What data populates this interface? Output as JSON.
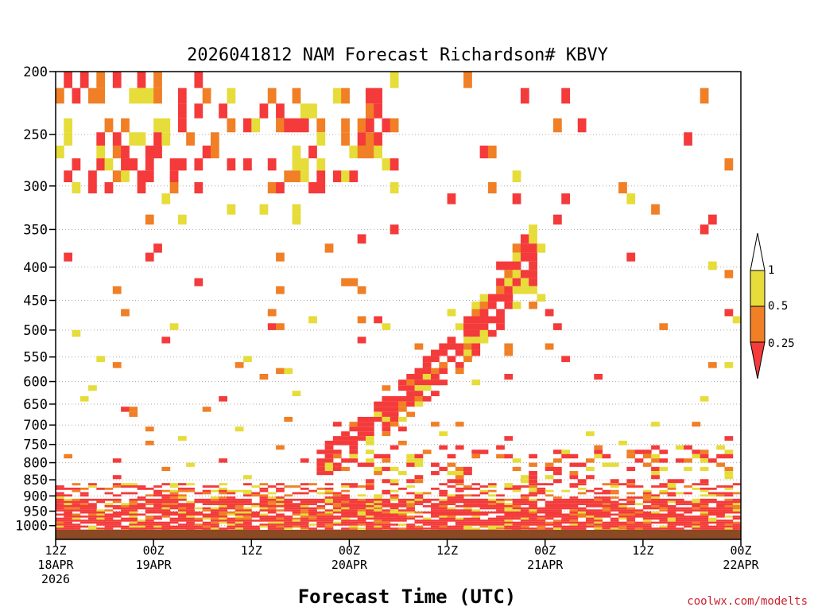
{
  "chart_data": {
    "type": "heatmap",
    "title": "2026041812 NAM Forecast Richardson# KBVY",
    "xlabel": "Forecast Time (UTC)",
    "ylabel": "",
    "credit": "coolwx.com/modelts",
    "y_ticks": [
      "200",
      "250",
      "300",
      "350",
      "400",
      "450",
      "500",
      "550",
      "600",
      "650",
      "700",
      "750",
      "800",
      "850",
      "900",
      "950",
      "1000"
    ],
    "y_tick_values": [
      200,
      250,
      300,
      350,
      400,
      450,
      500,
      550,
      600,
      650,
      700,
      750,
      800,
      850,
      900,
      950,
      1000
    ],
    "ylim": [
      200,
      1050
    ],
    "x_tick_hours": [
      0,
      12,
      24,
      36,
      48,
      60,
      72,
      84
    ],
    "x_ticks": [
      {
        "line1": "12Z",
        "line2": "18APR",
        "line3": "2026"
      },
      {
        "line1": "00Z",
        "line2": "19APR",
        "line3": ""
      },
      {
        "line1": "12Z",
        "line2": "",
        "line3": ""
      },
      {
        "line1": "00Z",
        "line2": "20APR",
        "line3": ""
      },
      {
        "line1": "12Z",
        "line2": "",
        "line3": ""
      },
      {
        "line1": "00Z",
        "line2": "21APR",
        "line3": ""
      },
      {
        "line1": "12Z",
        "line2": "",
        "line3": ""
      },
      {
        "line1": "00Z",
        "line2": "22APR",
        "line3": ""
      }
    ],
    "xlim_hours": [
      0,
      84
    ],
    "legend": {
      "colors": [
        "#f43a3a",
        "#f07f26",
        "#e6dc3a",
        "#ffffff"
      ],
      "labels": [
        "0.25",
        "0.5",
        "1"
      ]
    },
    "ground_color": "#8b4a23",
    "approx_ri_features": [
      {
        "desc": "low Ri layer near surface",
        "p_range": [
          900,
          1000
        ],
        "hours": [
          0,
          84
        ],
        "category": "<0.25"
      },
      {
        "desc": "slanted low Ri band",
        "p_range": [
          400,
          800
        ],
        "hours": [
          32,
          58
        ],
        "category": "<0.25"
      },
      {
        "desc": "upper-level patches",
        "p_range": [
          200,
          300
        ],
        "hours": [
          0,
          42
        ],
        "category": "<0.25"
      }
    ]
  }
}
